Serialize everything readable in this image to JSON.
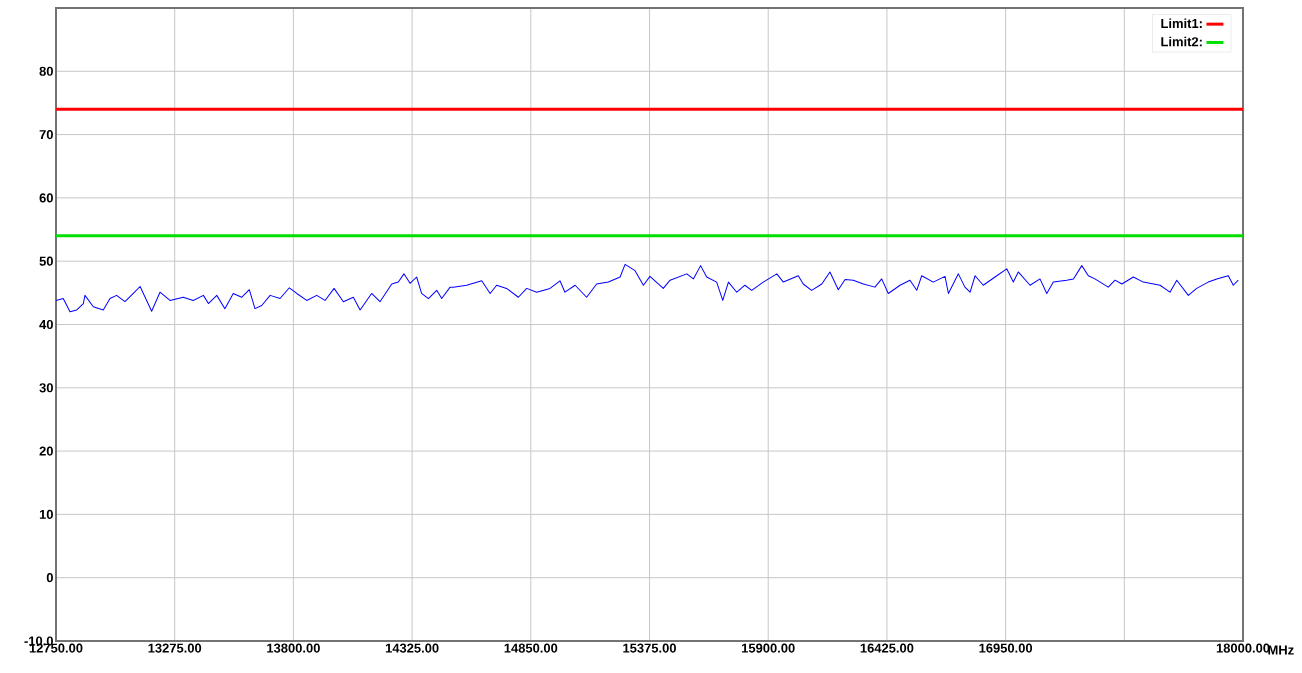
{
  "chart_data": {
    "type": "line",
    "xlabel": "MHz",
    "xlim": [
      12750,
      18000
    ],
    "ylim": [
      -10,
      90
    ],
    "xticks": [
      {
        "value": 12750,
        "label": "12750.00"
      },
      {
        "value": 13275,
        "label": "13275.00"
      },
      {
        "value": 13800,
        "label": "13800.00"
      },
      {
        "value": 14325,
        "label": "14325.00"
      },
      {
        "value": 14850,
        "label": "14850.00"
      },
      {
        "value": 15375,
        "label": "15375.00"
      },
      {
        "value": 15900,
        "label": "15900.00"
      },
      {
        "value": 16425,
        "label": "16425.00"
      },
      {
        "value": 16950,
        "label": "16950.00"
      },
      {
        "value": 17475,
        "label": null
      },
      {
        "value": 18000,
        "label": "18000.00"
      }
    ],
    "yticks": [
      {
        "value": -10,
        "label": "-10.0"
      },
      0,
      10,
      20,
      30,
      40,
      50,
      60,
      70,
      80
    ],
    "grid": true,
    "legend": "top right",
    "marker": "none",
    "line_style": "solid",
    "ref_lines": [
      {
        "axis": "y",
        "value": 74,
        "label": "Limit1:",
        "color": "#ff0000"
      },
      {
        "axis": "y",
        "value": 54,
        "label": "Limit2:",
        "color": "#00e000"
      }
    ],
    "series": [
      {
        "color": "#0000ff",
        "x": [
          12750,
          12782,
          12812,
          12842,
          12871,
          12878,
          12915,
          12959,
          12989,
          13018,
          13055,
          13092,
          13122,
          13173,
          13210,
          13254,
          13313,
          13357,
          13402,
          13424,
          13461,
          13497,
          13534,
          13571,
          13605,
          13630,
          13660,
          13697,
          13741,
          13782,
          13815,
          13859,
          13903,
          13940,
          13980,
          14021,
          14065,
          14095,
          14146,
          14183,
          14235,
          14264,
          14289,
          14316,
          14345,
          14367,
          14397,
          14434,
          14456,
          14493,
          14507,
          14566,
          14633,
          14670,
          14699,
          14743,
          14795,
          14832,
          14876,
          14935,
          14979,
          15001,
          15046,
          15097,
          15141,
          15193,
          15245,
          15267,
          15311,
          15348,
          15377,
          15436,
          15466,
          15540,
          15569,
          15601,
          15628,
          15672,
          15699,
          15724,
          15761,
          15797,
          15827,
          15878,
          15938,
          15967,
          16033,
          16055,
          16092,
          16137,
          16173,
          16210,
          16240,
          16276,
          16321,
          16372,
          16402,
          16431,
          16483,
          16527,
          16557,
          16579,
          16630,
          16682,
          16697,
          16741,
          16770,
          16793,
          16815,
          16851,
          16911,
          16955,
          16984,
          17006,
          17058,
          17102,
          17132,
          17161,
          17220,
          17250,
          17287,
          17316,
          17345,
          17404,
          17434,
          17464,
          17515,
          17559,
          17633,
          17677,
          17707,
          17758,
          17795,
          17846,
          17884,
          17935,
          17957,
          17979
        ],
        "values": [
          43.8,
          44.1,
          42.0,
          42.3,
          43.3,
          44.6,
          42.8,
          42.3,
          44.1,
          44.6,
          43.6,
          44.9,
          46.0,
          42.1,
          45.1,
          43.8,
          44.3,
          43.8,
          44.6,
          43.3,
          44.6,
          42.5,
          44.9,
          44.3,
          45.5,
          42.5,
          43.0,
          44.6,
          44.1,
          45.8,
          44.9,
          43.8,
          44.6,
          43.8,
          45.7,
          43.6,
          44.3,
          42.3,
          44.9,
          43.6,
          46.4,
          46.7,
          48.0,
          46.5,
          47.5,
          44.9,
          44.1,
          45.4,
          44.1,
          45.9,
          45.9,
          46.2,
          46.9,
          44.9,
          46.2,
          45.7,
          44.3,
          45.7,
          45.1,
          45.7,
          46.9,
          45.1,
          46.2,
          44.3,
          46.4,
          46.7,
          47.5,
          49.5,
          48.5,
          46.2,
          47.6,
          45.7,
          47.0,
          48.0,
          47.2,
          49.3,
          47.5,
          46.7,
          43.8,
          46.7,
          45.1,
          46.2,
          45.4,
          46.7,
          48.0,
          46.7,
          47.7,
          46.4,
          45.4,
          46.4,
          48.3,
          45.5,
          47.1,
          47.0,
          46.4,
          45.9,
          47.2,
          44.9,
          46.2,
          47.0,
          45.4,
          47.7,
          46.7,
          47.6,
          44.9,
          48.0,
          45.9,
          45.1,
          47.7,
          46.2,
          47.7,
          48.8,
          46.7,
          48.3,
          46.2,
          47.2,
          44.9,
          46.7,
          47.0,
          47.2,
          49.3,
          47.7,
          47.2,
          45.9,
          47.0,
          46.4,
          47.5,
          46.7,
          46.2,
          45.1,
          47.0,
          44.6,
          45.7,
          46.7,
          47.2,
          47.7,
          46.2,
          47.0
        ]
      }
    ]
  }
}
